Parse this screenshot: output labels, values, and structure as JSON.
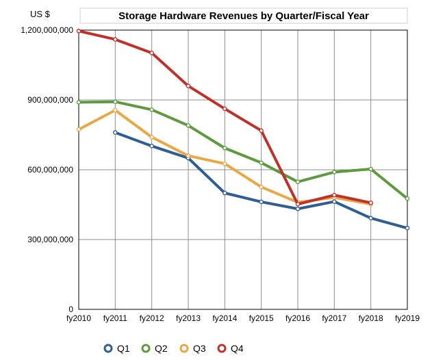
{
  "chart_data": {
    "type": "line",
    "title": "Storage Hardware Revenues by Quarter/Fiscal Year",
    "ylabel": "US $",
    "xlabel": "",
    "categories": [
      "fy2010",
      "fy2011",
      "fy2012",
      "fy2013",
      "fy2014",
      "fy2015",
      "fy2016",
      "fy2017",
      "fy2018",
      "fy2019"
    ],
    "ylim": [
      0,
      1200000000
    ],
    "yticks": [
      0,
      300000000,
      600000000,
      900000000,
      1200000000
    ],
    "ytick_labels": [
      "0",
      "300,000,000",
      "600,000,000",
      "900,000,000",
      "1,200,000,000"
    ],
    "grid": true,
    "legend_position": "bottom",
    "series": [
      {
        "name": "Q1",
        "color": "#2e5e92",
        "values": [
          null,
          760000000,
          702000000,
          650000000,
          500000000,
          462000000,
          432000000,
          463000000,
          392000000,
          349000000
        ]
      },
      {
        "name": "Q2",
        "color": "#5f9a3f",
        "values": [
          890000000,
          892000000,
          858000000,
          790000000,
          693000000,
          630000000,
          548000000,
          590000000,
          603000000,
          476000000
        ]
      },
      {
        "name": "Q3",
        "color": "#e9a844",
        "values": [
          773000000,
          856000000,
          740000000,
          660000000,
          626000000,
          526000000,
          460000000,
          481000000,
          452000000,
          null
        ]
      },
      {
        "name": "Q4",
        "color": "#c0312b",
        "values": [
          1196000000,
          1160000000,
          1102000000,
          960000000,
          862000000,
          768000000,
          452000000,
          491000000,
          458000000,
          null
        ]
      }
    ]
  }
}
